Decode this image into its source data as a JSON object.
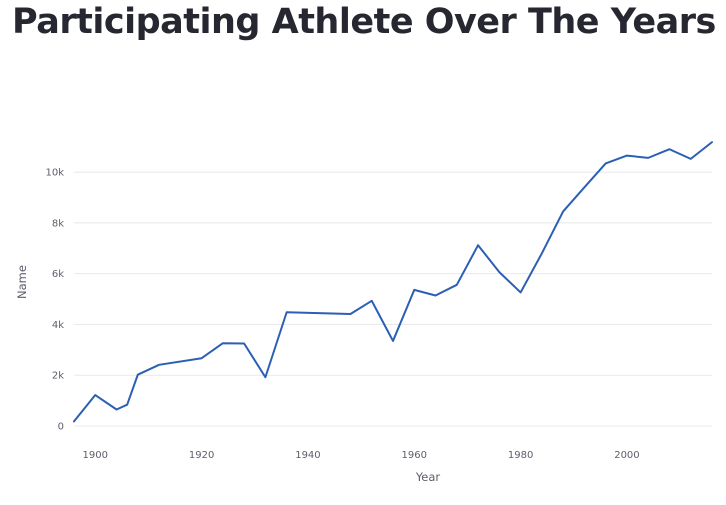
{
  "page": {
    "title": "Participating Athlete Over The Years"
  },
  "colors": {
    "line": "#2b5fb5",
    "grid": "#e6e8ec",
    "title": "#262730",
    "axis_text": "#5c5f6b"
  },
  "chart_data": {
    "type": "line",
    "xlabel": "Year",
    "ylabel": "Name",
    "xlim": [
      1896,
      2016
    ],
    "ylim": [
      0,
      11500
    ],
    "x_ticks": [
      1900,
      1920,
      1940,
      1960,
      1980,
      2000
    ],
    "y_ticks": [
      0,
      2000,
      4000,
      6000,
      8000,
      10000
    ],
    "y_tick_labels": [
      "0",
      "2k",
      "4k",
      "6k",
      "8k",
      "10k"
    ],
    "grid": true,
    "series": [
      {
        "x": [
          1896,
          1900,
          1904,
          1906,
          1908,
          1912,
          1920,
          1924,
          1928,
          1932,
          1936,
          1948,
          1952,
          1956,
          1960,
          1964,
          1968,
          1972,
          1976,
          1980,
          1984,
          1988,
          1992,
          1996,
          2000,
          2004,
          2008,
          2012,
          2016
        ],
        "y": [
          180,
          1220,
          650,
          840,
          2020,
          2410,
          2670,
          3260,
          3250,
          1920,
          4480,
          4410,
          4930,
          3350,
          5360,
          5140,
          5560,
          7120,
          6060,
          5260,
          6800,
          8450,
          9400,
          10340,
          10650,
          10560,
          10900,
          10520,
          11180
        ]
      }
    ]
  }
}
